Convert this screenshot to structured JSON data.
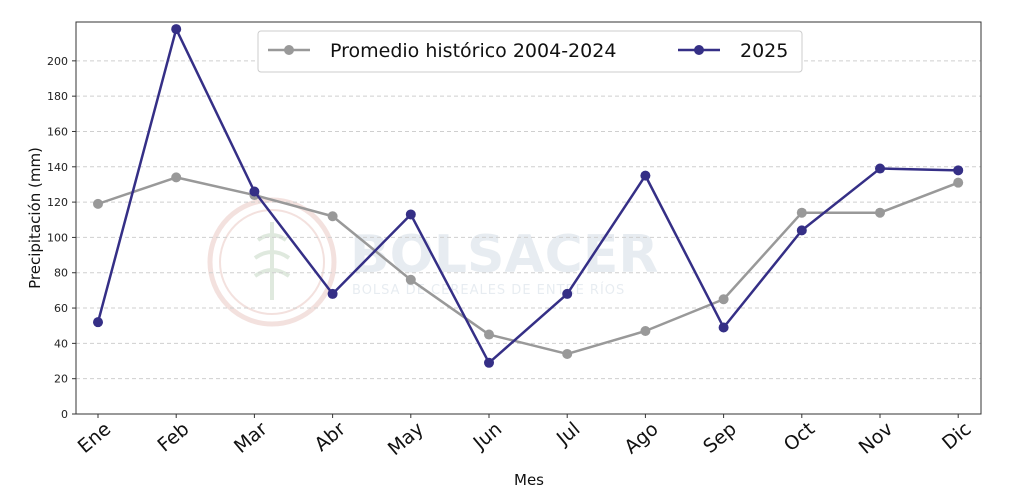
{
  "chart_data": {
    "type": "line",
    "categories": [
      "Ene",
      "Feb",
      "Mar",
      "Abr",
      "May",
      "Jun",
      "Jul",
      "Ago",
      "Sep",
      "Oct",
      "Nov",
      "Dic"
    ],
    "series": [
      {
        "name": "Promedio histórico 2004-2024",
        "color": "#999999",
        "values": [
          119,
          134,
          124,
          112,
          76,
          45,
          34,
          47,
          65,
          114,
          114,
          131
        ]
      },
      {
        "name": "2025",
        "color": "#352f86",
        "values": [
          52,
          218,
          126,
          68,
          113,
          29,
          68,
          135,
          49,
          104,
          139,
          138
        ]
      }
    ],
    "xlabel": "Mes",
    "ylabel": "Precipitación (mm)",
    "ylim": [
      0,
      222
    ],
    "yticks": [
      0,
      20,
      40,
      60,
      80,
      100,
      120,
      140,
      160,
      180,
      200
    ],
    "grid": "horizontal dashed",
    "legend_position": "top-center"
  },
  "watermark": {
    "title": "BOLSACER",
    "subtitle": "BOLSA DE CEREALES DE ENTRE RÍOS"
  }
}
